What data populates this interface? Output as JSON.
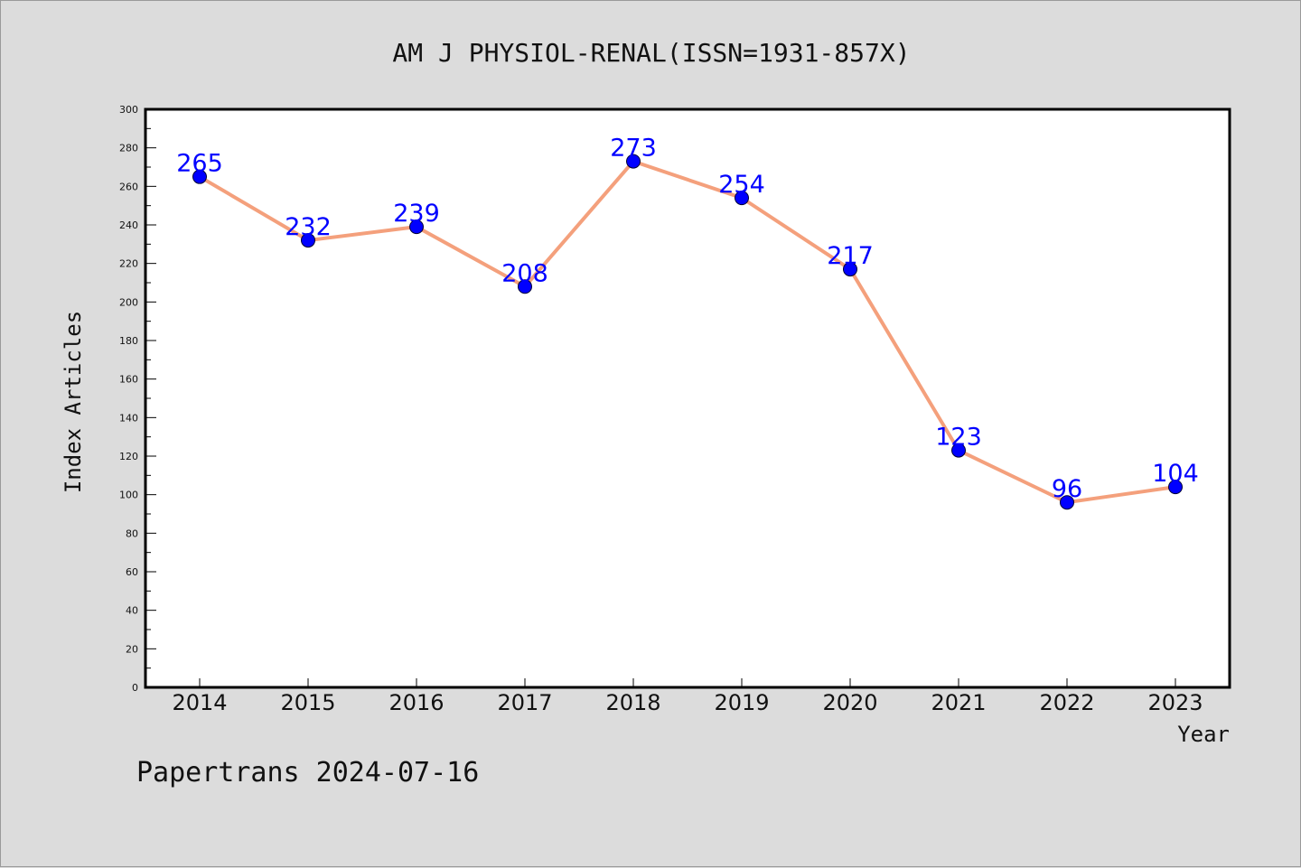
{
  "chart_data": {
    "type": "line",
    "title": "AM J PHYSIOL-RENAL(ISSN=1931-857X)",
    "xlabel": "Year",
    "ylabel": "Index Articles",
    "categories": [
      "2014",
      "2015",
      "2016",
      "2017",
      "2018",
      "2019",
      "2020",
      "2021",
      "2022",
      "2023"
    ],
    "values": [
      265,
      232,
      239,
      208,
      273,
      254,
      217,
      123,
      96,
      104
    ],
    "ylim": [
      0,
      300
    ],
    "yticks": [
      0,
      20,
      40,
      60,
      80,
      100,
      120,
      140,
      160,
      180,
      200,
      220,
      240,
      260,
      280,
      300
    ],
    "grid": false,
    "line_color": "#f4a07c",
    "marker_color": "#0000ff",
    "label_color": "#0000ff"
  },
  "footer": "Papertrans 2024-07-16"
}
